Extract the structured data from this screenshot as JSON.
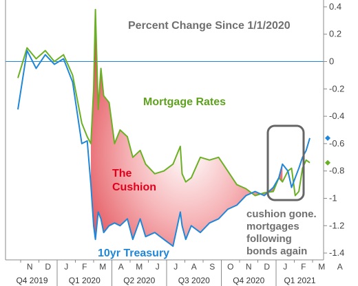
{
  "chart_data": {
    "type": "line",
    "title": "Percent Change Since 1/1/2020",
    "ylim": [
      -1.45,
      0.45
    ],
    "yticks": [
      0.4,
      0.2,
      0,
      -0.2,
      -0.4,
      -0.6,
      -0.8,
      -1,
      -1.2,
      -1.4
    ],
    "ytick_labels": [
      "0.4",
      "0.2",
      "0",
      "-0.2",
      "-0.4",
      "-0.6",
      "-0.8",
      "-1",
      "-1.2",
      "-1.4"
    ],
    "reference_line": 0,
    "months": [
      "N",
      "D",
      "J",
      "F",
      "M",
      "A",
      "M",
      "J",
      "J",
      "A",
      "S",
      "O",
      "N",
      "D",
      "J",
      "F",
      "M",
      "A"
    ],
    "quarters": [
      "Q4 2019",
      "Q1 2020",
      "Q2 2020",
      "Q3 2020",
      "Q4 2020",
      "Q1 2021"
    ],
    "x_month_index": [
      0.0,
      0.5,
      1.0,
      1.5,
      2.0,
      2.5,
      3.0,
      3.5,
      3.8,
      4.0,
      4.15,
      4.25,
      4.4,
      4.55,
      4.7,
      5.0,
      5.3,
      5.6,
      6.0,
      6.3,
      6.7,
      7.0,
      7.5,
      8.0,
      8.5,
      8.9,
      9.0,
      9.2,
      9.5,
      10.0,
      10.5,
      11.0,
      11.5,
      12.0,
      12.5,
      13.0,
      13.5,
      14.0,
      14.3,
      14.5,
      14.8,
      15.0,
      15.2,
      15.4,
      15.6,
      15.8,
      16.0
    ],
    "series": [
      {
        "name": "Mortgage Rates",
        "color": "#6ab023",
        "values": [
          -0.12,
          0.1,
          0.02,
          0.08,
          0.0,
          0.05,
          -0.1,
          -0.45,
          -0.55,
          -0.6,
          -0.2,
          0.38,
          -0.35,
          -0.05,
          -0.25,
          -0.3,
          -0.6,
          -0.5,
          -0.55,
          -0.7,
          -0.65,
          -0.75,
          -0.82,
          -0.8,
          -0.75,
          -0.62,
          -0.82,
          -0.88,
          -0.85,
          -0.7,
          -0.72,
          -0.7,
          -0.8,
          -0.9,
          -0.93,
          -0.98,
          -0.96,
          -0.95,
          -0.85,
          -0.88,
          -0.8,
          -0.78,
          -0.98,
          -0.95,
          -0.78,
          -0.72,
          -0.74
        ]
      },
      {
        "name": "10yr Treasury",
        "color": "#1f86d8",
        "values": [
          -0.35,
          0.08,
          -0.05,
          0.05,
          -0.02,
          0.02,
          -0.15,
          -0.6,
          -0.58,
          -0.9,
          -1.2,
          -1.3,
          -1.1,
          -1.15,
          -1.25,
          -1.2,
          -1.18,
          -1.2,
          -1.15,
          -1.3,
          -1.15,
          -1.28,
          -1.25,
          -1.3,
          -1.35,
          -1.1,
          -1.2,
          -1.3,
          -1.2,
          -1.25,
          -1.18,
          -1.15,
          -1.08,
          -1.05,
          -0.98,
          -0.95,
          -0.98,
          -0.92,
          -0.85,
          -0.75,
          -0.8,
          -0.92,
          -0.85,
          -0.78,
          -0.7,
          -0.65,
          -0.56
        ]
      }
    ],
    "annotations": {
      "mortgage_label": "Mortgage Rates",
      "cushion_line1": "The",
      "cushion_line2": "Cushion",
      "treasury_label": "10yr Treasury",
      "note_line1": "cushion gone.",
      "note_line2": "mortgages",
      "note_line3": "following",
      "note_line4": "bonds again"
    },
    "grid": false,
    "legend": "none"
  }
}
